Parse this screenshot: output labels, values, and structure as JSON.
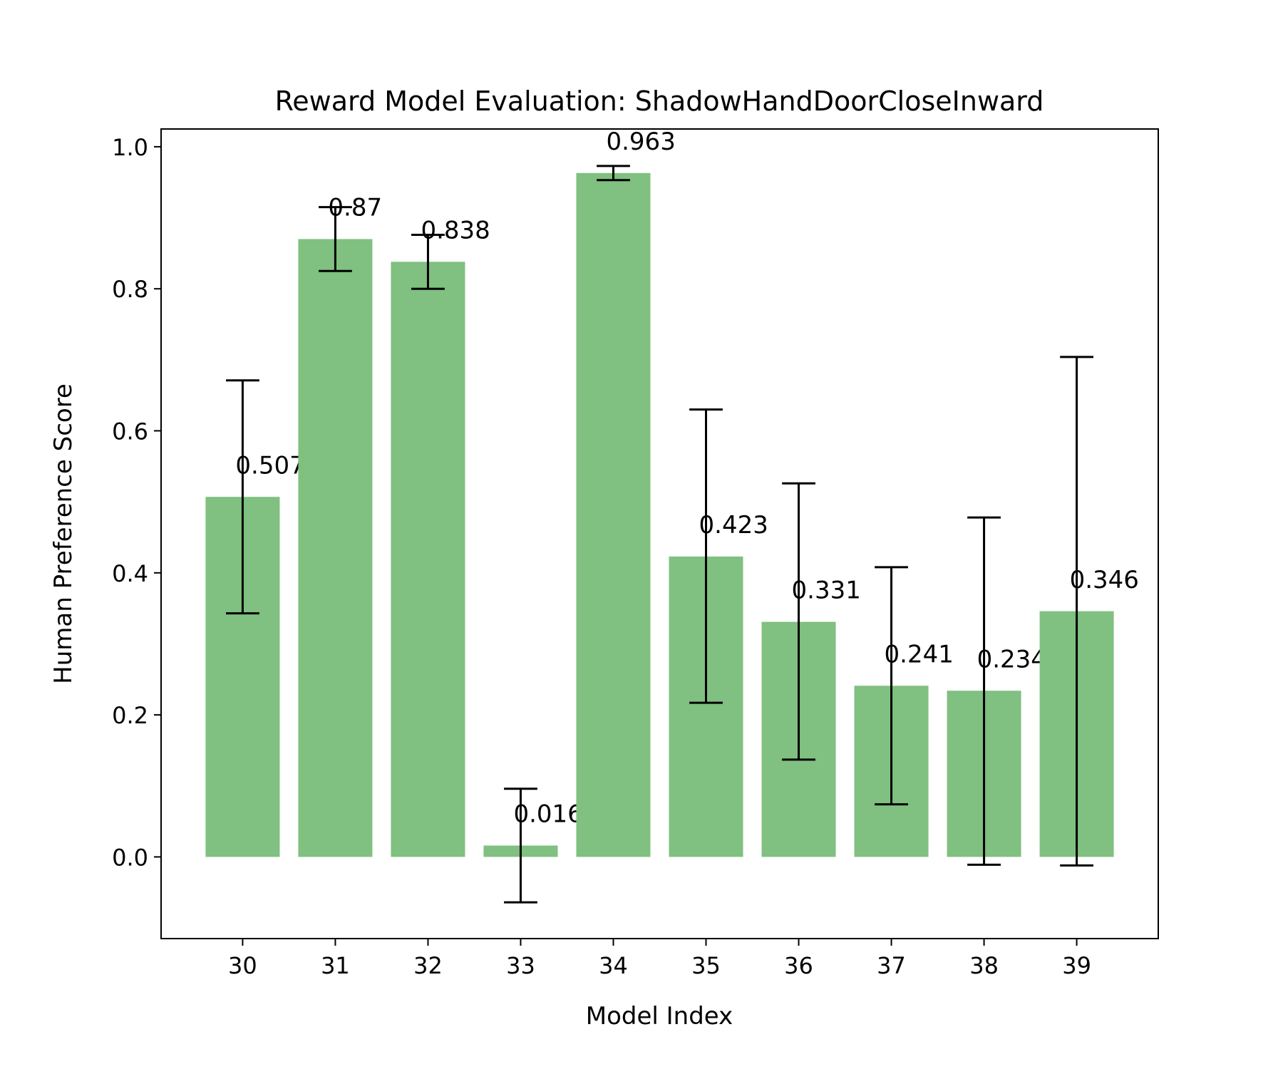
{
  "chart_data": {
    "type": "bar",
    "title": "Reward Model Evaluation: ShadowHandDoorCloseInward",
    "xlabel": "Model Index",
    "ylabel": "Human Preference Score",
    "categories": [
      "30",
      "31",
      "32",
      "33",
      "34",
      "35",
      "36",
      "37",
      "38",
      "39"
    ],
    "values": [
      0.507,
      0.87,
      0.838,
      0.016,
      0.963,
      0.423,
      0.331,
      0.241,
      0.234,
      0.346
    ],
    "value_labels": [
      "0.507",
      "0.87",
      "0.838",
      "0.016",
      "0.963",
      "0.423",
      "0.331",
      "0.241",
      "0.234",
      "0.346"
    ],
    "error_bars": [
      {
        "low": 0.343,
        "high": 0.671
      },
      {
        "low": 0.825,
        "high": 0.915
      },
      {
        "low": 0.8,
        "high": 0.876
      },
      {
        "low": -0.064,
        "high": 0.096
      },
      {
        "low": 0.953,
        "high": 0.973
      },
      {
        "low": 0.217,
        "high": 0.63
      },
      {
        "low": 0.137,
        "high": 0.526
      },
      {
        "low": 0.074,
        "high": 0.408
      },
      {
        "low": -0.011,
        "high": 0.478
      },
      {
        "low": -0.012,
        "high": 0.704
      }
    ],
    "ylim": [
      -0.115,
      1.025
    ],
    "yticks": [
      0.0,
      0.2,
      0.4,
      0.6,
      0.8,
      1.0
    ],
    "ytick_labels": [
      "0.0",
      "0.2",
      "0.4",
      "0.6",
      "0.8",
      "1.0"
    ],
    "grid": false,
    "bar_color": "#80c080",
    "errorbar_color": "#000000"
  }
}
